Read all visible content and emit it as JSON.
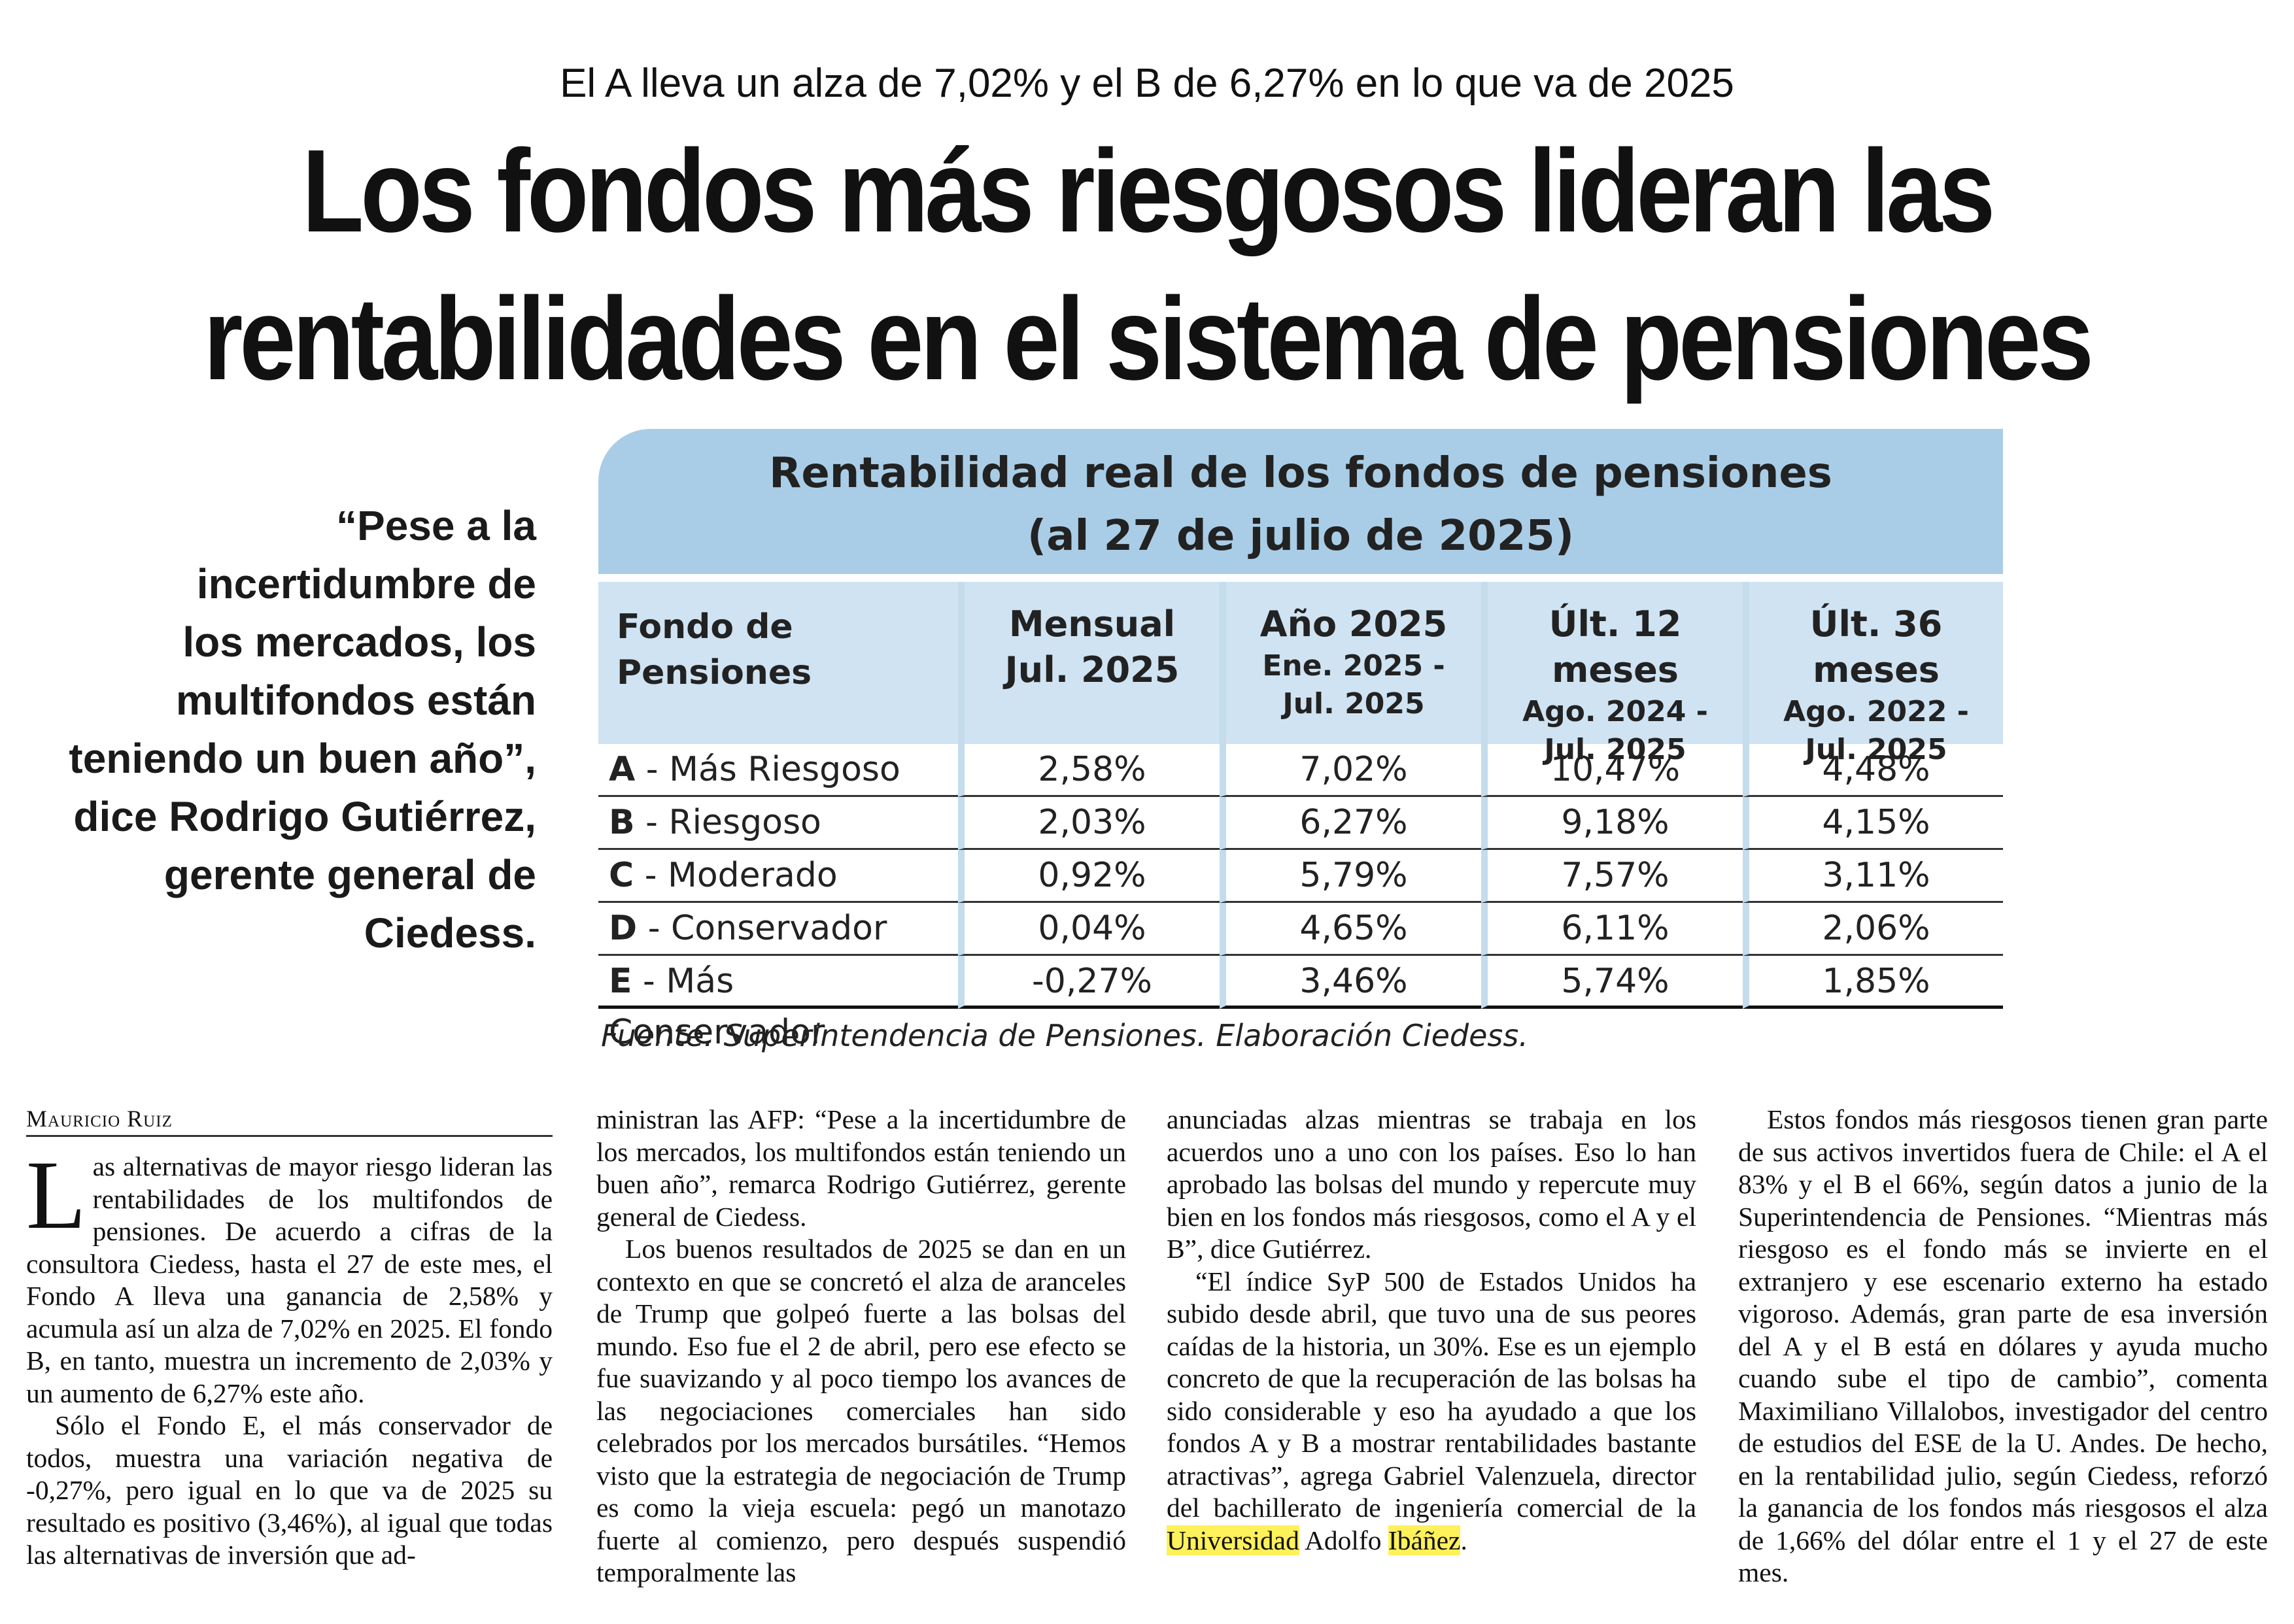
{
  "article": {
    "kicker": "El A lleva un alza de 7,02% y el B de 6,27% en lo que va de 2025",
    "headline_line1": "Los fondos más riesgosos lideran las",
    "headline_line2": "rentabilidades en el sistema de pensiones",
    "pullquote_open": "“",
    "pullquote_lines": [
      "Pese a la",
      "incertidumbre de",
      "los mercados, los",
      "multifondos están",
      "teniendo un buen año”,",
      "dice Rodrigo Gutiérrez,",
      "gerente general de",
      "Ciedess."
    ],
    "byline": "Mauricio Ruiz"
  },
  "table": {
    "title_line1": "Rentabilidad real de los fondos de pensiones",
    "title_line2": "(al 27 de julio de 2025)",
    "headers": [
      {
        "line1": "Fondo de",
        "line2": "Pensiones",
        "line3": ""
      },
      {
        "line1": "Mensual",
        "line2": "Jul. 2025",
        "line3": ""
      },
      {
        "line1": "Año 2025",
        "line2": "Ene. 2025 -",
        "line3": "Jul. 2025"
      },
      {
        "line1": "Últ. 12 meses",
        "line2": "Ago. 2024 -",
        "line3": "Jul. 2025"
      },
      {
        "line1": "Últ. 36 meses",
        "line2": "Ago. 2022 -",
        "line3": "Jul. 2025"
      }
    ],
    "rows": [
      {
        "letter": "A",
        "name": " - Más Riesgoso",
        "values": [
          "2,58%",
          "7,02%",
          "10,47%",
          "4,48%"
        ]
      },
      {
        "letter": "B",
        "name": " -  Riesgoso",
        "values": [
          "2,03%",
          "6,27%",
          "9,18%",
          "4,15%"
        ]
      },
      {
        "letter": "C",
        "name": " - Moderado",
        "values": [
          "0,92%",
          "5,79%",
          "7,57%",
          "3,11%"
        ]
      },
      {
        "letter": "D",
        "name": " - Conservador",
        "values": [
          "0,04%",
          "4,65%",
          "6,11%",
          "2,06%"
        ]
      },
      {
        "letter": "E",
        "name": " - Más Conservador",
        "values": [
          "-0,27%",
          "3,46%",
          "5,74%",
          "1,85%"
        ]
      }
    ],
    "source": "Fuente: Superintendencia de Pensiones. Elaboración Ciedess.",
    "colors": {
      "title_bg": "#a9cde6",
      "header_bg": "#cfe3f2"
    }
  },
  "body": {
    "col1_dropcap": "L",
    "col1_p1": "as alternativas de mayor riesgo lideran las rentabilidades de los multifondos de pensiones. De acuerdo a cifras de la consultora Ciedess, hasta el 27 de este mes, el Fondo A  lleva una ganancia de 2,58% y acumula así un alza de 7,02% en 2025. El fondo B, en tanto, muestra un incremento de 2,03% y un aumento de 6,27% este año.",
    "col1_p2": "Sólo el Fondo E, el más conservador de todos, muestra una variación negativa de -0,27%, pero igual en lo que va de 2025 su resultado es positivo (3,46%), al igual que todas las alternativas de inversión que ad-",
    "col2_p1": "ministran las AFP: “Pese a la incertidumbre de los mercados, los multifondos están teniendo un buen año”, remarca Rodrigo Gutiérrez, gerente general de Ciedess.",
    "col2_p2": "Los buenos resultados de 2025 se dan en un contexto en que se concretó el alza de aranceles de Trump que golpeó fuerte a las bolsas del  mundo. Eso fue el 2 de abril, pero ese efecto se fue suavizando y al poco tiempo los avances de las negociaciones comerciales han sido celebrados por los mercados bursátiles. “Hemos visto que la estrategia de negociación de Trump es como la vieja escuela: pegó un manotazo fuerte al comienzo, pero después suspendió temporalmente las",
    "col3_p1": "anunciadas alzas mientras se trabaja en los acuerdos uno a uno con los países. Eso lo han aprobado las bolsas del mundo y repercute muy bien en los fondos más riesgosos, como el A y el B”, dice Gutiérrez.",
    "col3_p2": "“El índice SyP 500 de Estados Unidos ha subido desde abril, que tuvo una de sus peores caídas de la historia, un 30%. Ese es un ejemplo concreto de que la recuperación de las bolsas ha sido considerable y eso ha ayudado a que los fondos A y B a mostrar rentabilidades bastante atractivas”, agrega Gabriel Valenzuela, director del bachillerato de ingeniería comercial de la",
    "col3_hl1": "Universidad",
    "col3_hl_pre": "Adolfo",
    "col3_hl2": "Ibáñez",
    "col3_end": ".",
    "col4_p1": "Estos fondos más riesgosos tienen gran parte de sus activos invertidos fuera de Chile: el A el 83% y el B el 66%, según datos a junio de la Superintendencia de Pensiones. “Mientras más riesgoso es el fondo más se invierte en el extranjero y ese escenario externo ha estado vigoroso. Además, gran parte de esa inversión del A y el B está en dólares y ayuda mucho cuando sube el tipo de cambio”, comenta Maximiliano Villalobos, investigador del centro de estudios del ESE de la U. Andes. De hecho, en la rentabilidad julio, según Ciedess, reforzó la ganancia de los fondos más riesgosos el alza de 1,66% del dólar entre el 1 y el 27 de este mes."
  }
}
